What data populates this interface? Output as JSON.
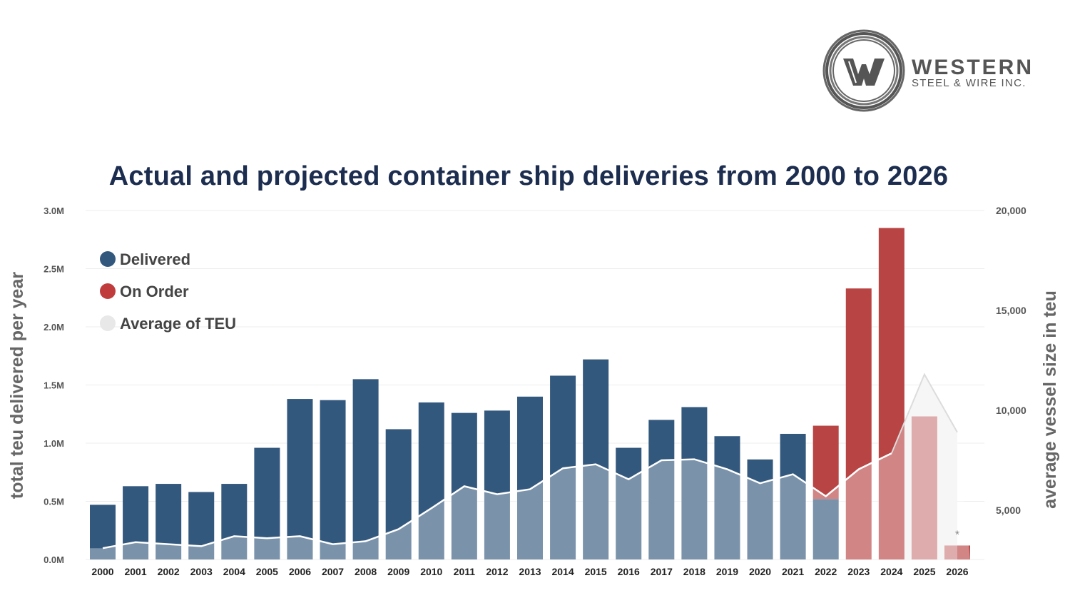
{
  "logo": {
    "name": "WESTERN",
    "subtitle": "STEEL & WIRE INC."
  },
  "chart_data": {
    "type": "bar",
    "title": "Actual and projected container ship deliveries from 2000 to 2026",
    "ylabel": "total teu delivered per year",
    "y2label": "average vessel size in teu",
    "ylim": [
      0,
      3000000
    ],
    "y2lim": [
      2536,
      20000
    ],
    "yticks": [
      "0.0M",
      "0.5M",
      "1.0M",
      "1.5M",
      "2.0M",
      "2.5M",
      "3.0M"
    ],
    "y2ticks": [
      "5,000",
      "10,000",
      "15,000",
      "20,000"
    ],
    "legend_position": "top-left",
    "grid": true,
    "categories": [
      "2000",
      "2001",
      "2002",
      "2003",
      "2004",
      "2005",
      "2006",
      "2007",
      "2008",
      "2009",
      "2010",
      "2011",
      "2012",
      "2013",
      "2014",
      "2015",
      "2016",
      "2017",
      "2018",
      "2019",
      "2020",
      "2021",
      "2022",
      "2023",
      "2024",
      "2025",
      "2026"
    ],
    "series": [
      {
        "name": "Delivered",
        "color": "#33587d",
        "axis": "left",
        "values": [
          470000,
          630000,
          650000,
          580000,
          650000,
          960000,
          1380000,
          1370000,
          1550000,
          1120000,
          1350000,
          1260000,
          1280000,
          1400000,
          1580000,
          1720000,
          960000,
          1200000,
          1310000,
          1060000,
          860000,
          1080000,
          520000,
          0,
          0,
          0,
          0
        ]
      },
      {
        "name": "On Order",
        "color": "#b84444",
        "axis": "left",
        "values": [
          0,
          0,
          0,
          0,
          0,
          0,
          0,
          0,
          0,
          0,
          0,
          0,
          0,
          0,
          0,
          0,
          0,
          0,
          0,
          0,
          0,
          0,
          630000,
          2330000,
          2850000,
          1230000,
          120000
        ]
      },
      {
        "name": "Average of TEU",
        "color": "#e6e6e6",
        "axis": "right",
        "values": [
          3100,
          3400,
          3300,
          3200,
          3700,
          3600,
          3700,
          3300,
          3450,
          4050,
          5100,
          6200,
          5800,
          6050,
          7100,
          7300,
          6550,
          7500,
          7550,
          7050,
          6350,
          6800,
          5700,
          7050,
          7850,
          null,
          null
        ],
        "projected": {
          "2024": 7850,
          "2025": 11800,
          "2026": 8900
        }
      }
    ],
    "annotations": [
      {
        "category": "2026",
        "text": "*"
      }
    ]
  }
}
